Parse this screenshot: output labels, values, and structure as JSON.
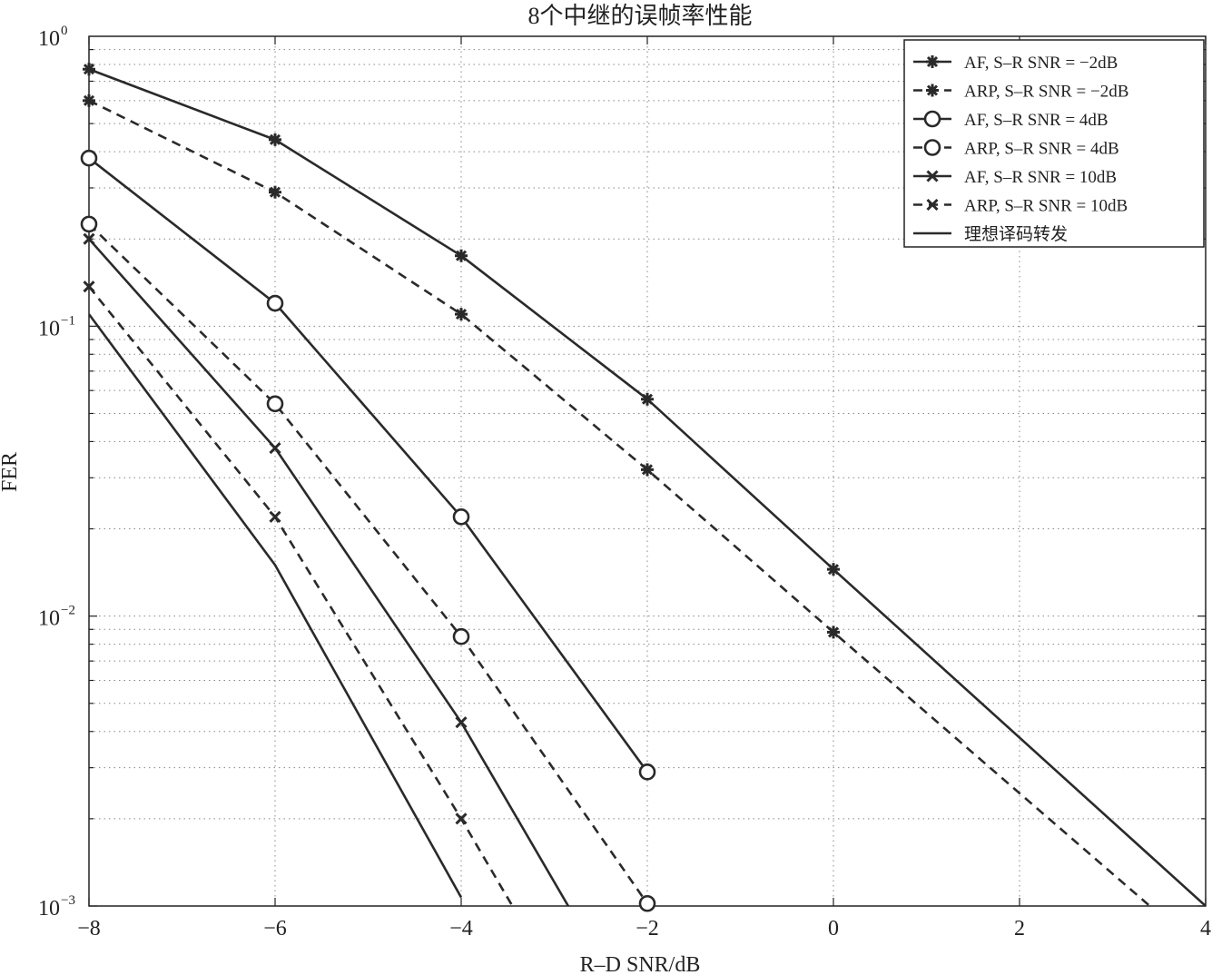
{
  "chart_data": {
    "type": "line",
    "title": "8个中继的误帧率性能",
    "xlabel": "R–D SNR/dB",
    "ylabel": "FER",
    "xlim": [
      -8,
      4
    ],
    "ylim": [
      0.001,
      1
    ],
    "yscale": "log",
    "grid": true,
    "legend_position": "top-right",
    "x_ticks": [
      {
        "value": -8,
        "label": "−8"
      },
      {
        "value": -6,
        "label": "−6"
      },
      {
        "value": -4,
        "label": "−4"
      },
      {
        "value": -2,
        "label": "−2"
      },
      {
        "value": 0,
        "label": "0"
      },
      {
        "value": 2,
        "label": "2"
      },
      {
        "value": 4,
        "label": "4"
      }
    ],
    "y_ticks": [
      {
        "value": 1,
        "base": "10",
        "exp": "0"
      },
      {
        "value": 0.1,
        "base": "10",
        "exp": "−1"
      },
      {
        "value": 0.01,
        "base": "10",
        "exp": "−2"
      },
      {
        "value": 0.001,
        "base": "10",
        "exp": "−3"
      }
    ],
    "series": [
      {
        "name": "AF, S–R SNR = −2dB",
        "style": "solid",
        "marker": "star",
        "points": [
          [
            -8,
            0.77
          ],
          [
            -6,
            0.44
          ],
          [
            -4,
            0.175
          ],
          [
            -2,
            0.056
          ],
          [
            0,
            0.0145
          ],
          [
            4,
            0.001
          ]
        ],
        "marker_points": [
          [
            -8,
            0.77
          ],
          [
            -6,
            0.44
          ],
          [
            -4,
            0.175
          ],
          [
            -2,
            0.056
          ],
          [
            0,
            0.0145
          ]
        ]
      },
      {
        "name": "ARP, S–R SNR = −2dB",
        "style": "dashed",
        "marker": "star",
        "points": [
          [
            -8,
            0.6
          ],
          [
            -6,
            0.29
          ],
          [
            -4,
            0.11
          ],
          [
            -2,
            0.032
          ],
          [
            0,
            0.0088
          ],
          [
            3.4,
            0.001
          ]
        ],
        "marker_points": [
          [
            -8,
            0.6
          ],
          [
            -6,
            0.29
          ],
          [
            -4,
            0.11
          ],
          [
            -2,
            0.032
          ],
          [
            0,
            0.0088
          ]
        ]
      },
      {
        "name": "AF, S–R SNR = 4dB",
        "style": "solid",
        "marker": "circle",
        "points": [
          [
            -8,
            0.38
          ],
          [
            -6,
            0.12
          ],
          [
            -4,
            0.022
          ],
          [
            -2,
            0.0029
          ]
        ],
        "marker_points": [
          [
            -8,
            0.38
          ],
          [
            -6,
            0.12
          ],
          [
            -4,
            0.022
          ],
          [
            -2,
            0.0029
          ]
        ]
      },
      {
        "name": "ARP, S–R SNR = 4dB",
        "style": "dashed",
        "marker": "circle",
        "points": [
          [
            -8,
            0.225
          ],
          [
            -6,
            0.054
          ],
          [
            -4,
            0.0085
          ],
          [
            -2,
            0.00102
          ]
        ],
        "marker_points": [
          [
            -8,
            0.225
          ],
          [
            -6,
            0.054
          ],
          [
            -4,
            0.0085
          ],
          [
            -2,
            0.00102
          ]
        ]
      },
      {
        "name": "AF, S–R SNR = 10dB",
        "style": "solid",
        "marker": "x",
        "points": [
          [
            -8,
            0.2
          ],
          [
            -6,
            0.038
          ],
          [
            -4,
            0.0043
          ],
          [
            -2.85,
            0.001
          ]
        ],
        "marker_points": [
          [
            -8,
            0.2
          ],
          [
            -6,
            0.038
          ],
          [
            -4,
            0.0043
          ]
        ]
      },
      {
        "name": "ARP, S–R SNR = 10dB",
        "style": "dashed",
        "marker": "x",
        "points": [
          [
            -8,
            0.137
          ],
          [
            -6,
            0.022
          ],
          [
            -4,
            0.002
          ],
          [
            -3.45,
            0.001
          ]
        ],
        "marker_points": [
          [
            -8,
            0.137
          ],
          [
            -6,
            0.022
          ],
          [
            -4,
            0.002
          ]
        ]
      },
      {
        "name": "理想译码转发",
        "style": "solid",
        "marker": "none",
        "points": [
          [
            -8,
            0.11
          ],
          [
            -6,
            0.015
          ],
          [
            -4,
            0.00107
          ]
        ],
        "marker_points": []
      }
    ]
  }
}
